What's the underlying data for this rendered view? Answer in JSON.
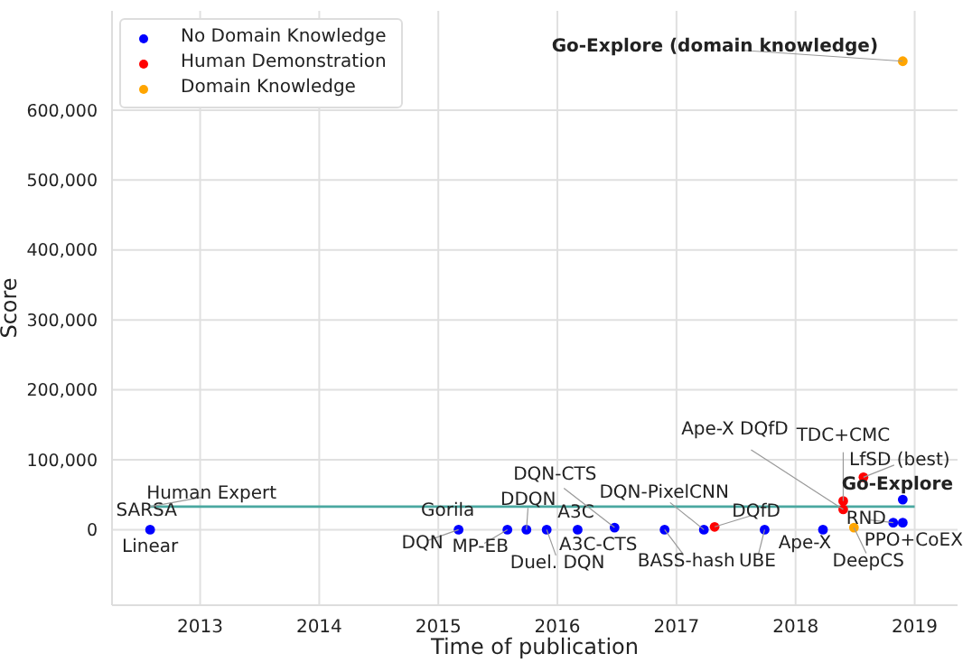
{
  "chart_data": {
    "type": "scatter",
    "xlabel": "Time of publication",
    "ylabel": "Score",
    "xlim": [
      2012.26,
      2019.36
    ],
    "xticks": [
      2013,
      2014,
      2015,
      2016,
      2017,
      2018,
      2019
    ],
    "ylim": [
      -108000,
      742000
    ],
    "yticks": [
      0,
      {
        "value": 100000,
        "label": "100,000"
      },
      {
        "value": 200000,
        "label": "200,000"
      },
      {
        "value": 300000,
        "label": "300,000"
      },
      {
        "value": 400000,
        "label": "400,000"
      },
      {
        "value": 500000,
        "label": "500,000"
      },
      {
        "value": 600000,
        "label": "600,000"
      }
    ],
    "grid": true,
    "legend": "top left",
    "marker": "circle",
    "series": [
      {
        "name": "No Domain Knowledge",
        "color": "#0000ff",
        "x": [
          2012.58,
          2015.17,
          2015.58,
          2015.74,
          2015.91,
          2016.17,
          2016.48,
          2016.9,
          2017.23,
          2017.74,
          2018.23,
          2018.82,
          2018.9,
          2018.9
        ],
        "values": [
          0,
          0,
          0,
          0,
          0,
          0,
          3000,
          0,
          0,
          0,
          0,
          10000,
          10000,
          43000
        ]
      },
      {
        "name": "Human Demonstration",
        "color": "#ff0000",
        "x": [
          2017.32,
          2018.4,
          2018.4,
          2018.57
        ],
        "values": [
          4000,
          41000,
          29000,
          75000
        ]
      },
      {
        "name": "Domain Knowledge",
        "color": "#ffa500",
        "x": [
          2018.49,
          2018.9
        ],
        "values": [
          3000,
          670000
        ]
      },
      {
        "type": "line",
        "color": "#4aa8a0",
        "x": [
          2012.58,
          2019.0
        ],
        "values": [
          33000,
          33000
        ],
        "line_style": "solid",
        "marker": "none"
      }
    ],
    "annotations": [
      {
        "text": "SARSA",
        "x": 2012.58,
        "y": 0
      },
      {
        "text": "Linear",
        "x": 2012.58,
        "y": 0
      },
      {
        "text": "Human Expert",
        "x": 2012.58,
        "y": 33000
      },
      {
        "text": "DQN",
        "x": 2015.17,
        "y": 0
      },
      {
        "text": "Gorila",
        "x": 2015.17,
        "y": 0
      },
      {
        "text": "MP-EB",
        "x": 2015.58,
        "y": 0
      },
      {
        "text": "DDQN",
        "x": 2015.74,
        "y": 0
      },
      {
        "text": "Duel. DQN",
        "x": 2015.91,
        "y": 0
      },
      {
        "text": "A3C",
        "x": 2016.17,
        "y": 0
      },
      {
        "text": "A3C-CTS",
        "x": 2016.48,
        "y": 3000
      },
      {
        "text": "DQN-CTS",
        "x": 2016.48,
        "y": 3000
      },
      {
        "text": "DQN-PixelCNN",
        "x": 2017.23,
        "y": 0
      },
      {
        "text": "BASS-hash",
        "x": 2016.9,
        "y": 0
      },
      {
        "text": "DQfD",
        "x": 2017.32,
        "y": 4000
      },
      {
        "text": "UBE",
        "x": 2017.74,
        "y": 0
      },
      {
        "text": "Ape-X",
        "x": 2018.23,
        "y": 0
      },
      {
        "text": "Ape-X DQfD",
        "x": 2018.4,
        "y": 29000
      },
      {
        "text": "TDC+CMC",
        "x": 2018.4,
        "y": 41000
      },
      {
        "text": "LfSD (best)",
        "x": 2018.57,
        "y": 75000
      },
      {
        "text": "Go-Explore",
        "x": 2018.9,
        "y": 43000
      },
      {
        "text": "RND",
        "x": 2018.82,
        "y": 10000
      },
      {
        "text": "PPO+CoEX",
        "x": 2018.9,
        "y": 10000
      },
      {
        "text": "DeepCS",
        "x": 2018.49,
        "y": 3000
      },
      {
        "text": "Go-Explore (domain knowledge)",
        "x": 2018.9,
        "y": 670000
      }
    ]
  }
}
